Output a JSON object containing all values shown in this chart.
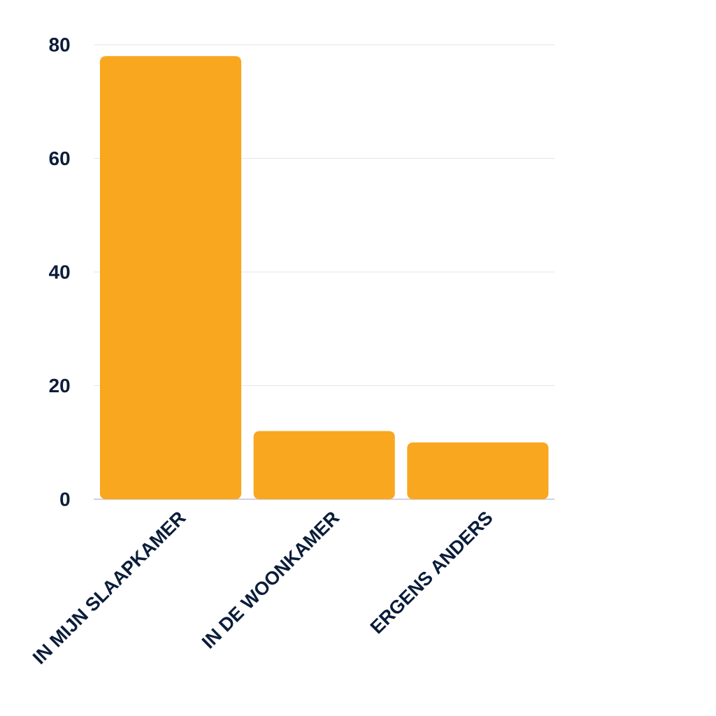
{
  "chart_data": {
    "type": "bar",
    "categories": [
      "IN MIJN SLAAPKAMER",
      "IN DE WOONKAMER",
      "ERGENS ANDERS"
    ],
    "values": [
      78,
      12,
      10
    ],
    "color": "#f8a71e",
    "ylim": [
      0,
      80
    ],
    "yticks": [
      0,
      20,
      40,
      60,
      80
    ],
    "grid": "y"
  }
}
